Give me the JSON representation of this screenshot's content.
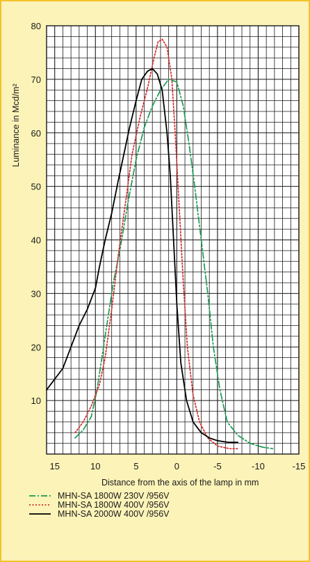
{
  "chart_data": {
    "type": "line",
    "xlabel": "Distance from the axis of the lamp in mm",
    "ylabel": "Luminance in Mcd/m²",
    "xlim": [
      16,
      -15
    ],
    "ylim": [
      0,
      80
    ],
    "x_ticks": [
      15,
      10,
      5,
      0,
      -5,
      -10,
      -15
    ],
    "x_tick_labels": [
      "15",
      "10",
      "5",
      "0",
      "-5",
      "-10",
      "-15"
    ],
    "y_ticks": [
      10,
      20,
      30,
      40,
      50,
      60,
      70,
      80
    ],
    "y_tick_labels": [
      "10",
      "20",
      "30",
      "40",
      "50",
      "60",
      "70",
      "80"
    ],
    "grid": true,
    "legend_position": "bottom",
    "series": [
      {
        "name": "MHN-SA 1800W 230V /956V",
        "color": "#1a9a52",
        "style": "dashdot",
        "points": [
          [
            12.5,
            3
          ],
          [
            11.5,
            4.5
          ],
          [
            10.5,
            7
          ],
          [
            9.8,
            12
          ],
          [
            9.2,
            18
          ],
          [
            8.5,
            25
          ],
          [
            7.8,
            32
          ],
          [
            7,
            38
          ],
          [
            6,
            47
          ],
          [
            5,
            55
          ],
          [
            4,
            61
          ],
          [
            3,
            65
          ],
          [
            2,
            68
          ],
          [
            1,
            70
          ],
          [
            0,
            69.5
          ],
          [
            -0.8,
            65
          ],
          [
            -1.5,
            58
          ],
          [
            -2.2,
            50
          ],
          [
            -3,
            40
          ],
          [
            -3.8,
            30
          ],
          [
            -4.5,
            20
          ],
          [
            -5.3,
            12
          ],
          [
            -6.2,
            6
          ],
          [
            -7.5,
            3.5
          ],
          [
            -9,
            2
          ],
          [
            -10.5,
            1.3
          ],
          [
            -11.8,
            1
          ]
        ]
      },
      {
        "name": "MHN-SA 1800W 400V /956V",
        "color": "#d42a2a",
        "style": "dotted",
        "points": [
          [
            12.5,
            4
          ],
          [
            11.5,
            6
          ],
          [
            10.5,
            9
          ],
          [
            9.5,
            13
          ],
          [
            8.8,
            18
          ],
          [
            8,
            27
          ],
          [
            7.2,
            37
          ],
          [
            6.3,
            47
          ],
          [
            5.5,
            56
          ],
          [
            4.5,
            63
          ],
          [
            3.5,
            69
          ],
          [
            2.8,
            74
          ],
          [
            2.3,
            77
          ],
          [
            1.8,
            77.5
          ],
          [
            1.2,
            76
          ],
          [
            0.6,
            70
          ],
          [
            0.2,
            60
          ],
          [
            -0.3,
            46
          ],
          [
            -0.8,
            32
          ],
          [
            -1.3,
            20
          ],
          [
            -2,
            11
          ],
          [
            -2.8,
            6
          ],
          [
            -3.8,
            3
          ],
          [
            -5,
            1.5
          ],
          [
            -6.5,
            1
          ],
          [
            -7.5,
            1
          ]
        ]
      },
      {
        "name": "MHN-SA 2000W 400V /956V",
        "color": "#000000",
        "style": "solid",
        "points": [
          [
            16,
            12
          ],
          [
            15,
            14
          ],
          [
            14,
            16
          ],
          [
            13,
            20
          ],
          [
            12,
            24
          ],
          [
            11,
            27
          ],
          [
            10,
            31
          ],
          [
            9.5,
            35
          ],
          [
            8.8,
            40
          ],
          [
            8,
            45
          ],
          [
            7.2,
            51
          ],
          [
            6.5,
            56
          ],
          [
            5.8,
            61
          ],
          [
            5,
            66
          ],
          [
            4.3,
            70
          ],
          [
            3.6,
            71.5
          ],
          [
            3,
            72
          ],
          [
            2.4,
            71
          ],
          [
            1.8,
            68
          ],
          [
            1.2,
            60
          ],
          [
            0.8,
            52
          ],
          [
            0.4,
            40
          ],
          [
            0,
            28
          ],
          [
            -0.5,
            17
          ],
          [
            -1.2,
            10
          ],
          [
            -2,
            6
          ],
          [
            -3,
            4
          ],
          [
            -4,
            3
          ],
          [
            -5,
            2.5
          ],
          [
            -6.3,
            2.2
          ],
          [
            -7.5,
            2.2
          ]
        ]
      }
    ]
  }
}
